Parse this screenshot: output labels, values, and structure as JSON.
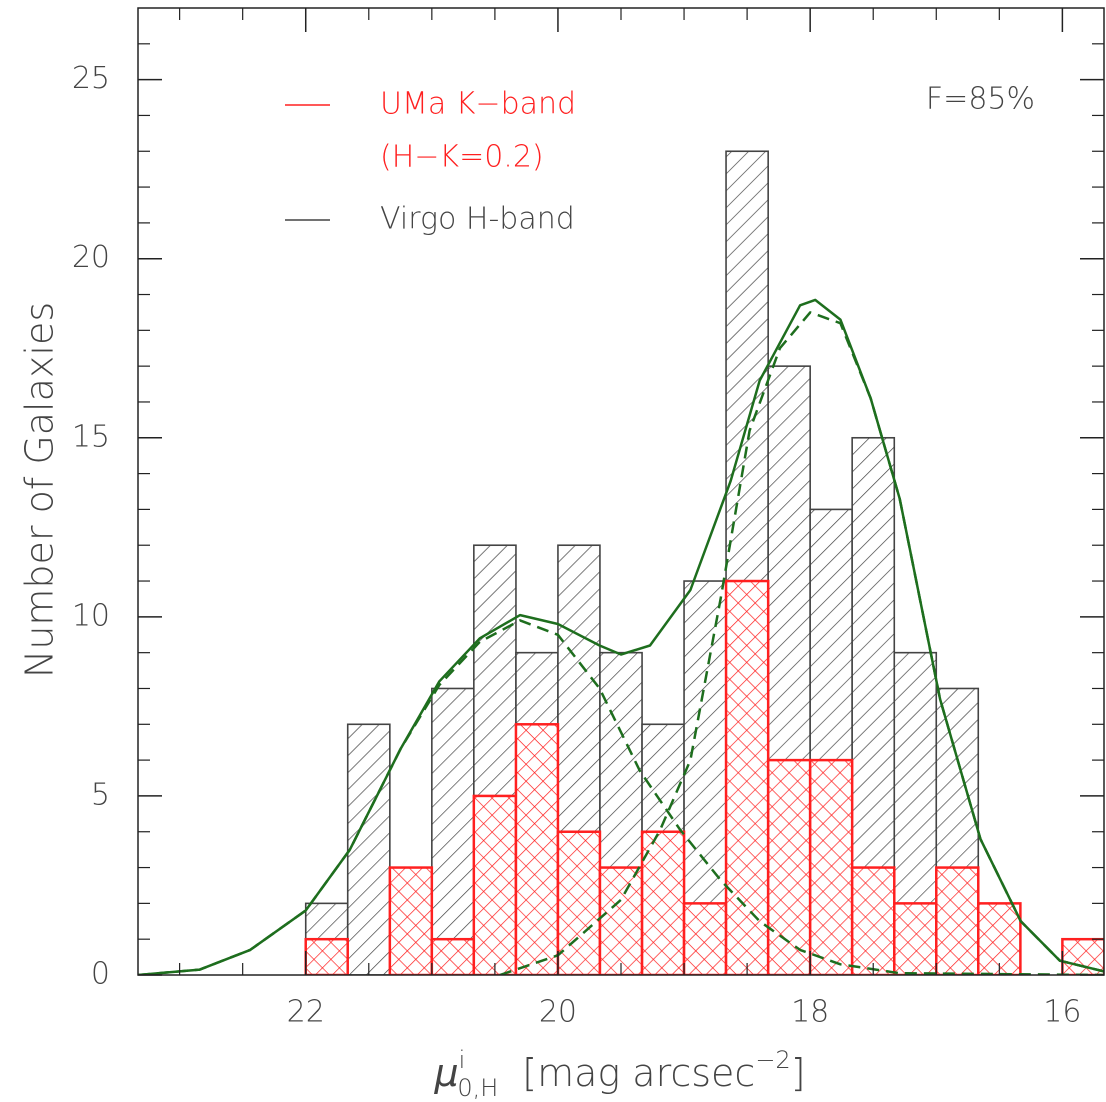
{
  "chart_data": {
    "type": "histogram",
    "annotation": "F=85%",
    "ylabel": "Number of Galaxies",
    "xlabel": {
      "symbol": "μ",
      "sup": "i",
      "sub": "0,H",
      "unit": "[mag arcsec",
      "exp": "−2",
      "close": "]"
    },
    "xlim": [
      23.33,
      15.67
    ],
    "ylim": [
      0,
      27
    ],
    "xticks": [
      22,
      20,
      18,
      16
    ],
    "xminorticks": [
      23,
      22.5,
      21.5,
      21,
      20.5,
      19.5,
      19,
      18.5,
      17.5,
      17,
      16.5
    ],
    "yticks": [
      0,
      5,
      10,
      15,
      20,
      25
    ],
    "yminorticks": [
      1,
      2,
      3,
      4,
      6,
      7,
      8,
      9,
      11,
      12,
      13,
      14,
      16,
      17,
      18,
      19,
      21,
      22,
      23,
      24,
      26
    ],
    "bins": [
      22,
      21.667,
      21.333,
      21,
      20.667,
      20.333,
      20,
      19.667,
      19.333,
      19,
      18.667,
      18.333,
      18,
      17.667,
      17.333,
      17,
      16.667,
      16.333,
      16,
      15.667
    ],
    "series": [
      {
        "name": "Virgo H-band",
        "color": "#444444",
        "hatch": "single",
        "values": [
          2,
          7,
          3,
          8,
          12,
          9,
          12,
          9,
          7,
          11,
          23,
          17,
          13,
          15,
          9,
          8,
          0,
          0,
          0
        ]
      },
      {
        "name": "UMa K−band",
        "subname": "(H−K=0.2)",
        "color": "#ff2020",
        "hatch": "cross",
        "values": [
          1,
          0,
          3,
          1,
          5,
          7,
          4,
          3,
          4,
          2,
          11,
          6,
          6,
          3,
          2,
          3,
          2,
          0,
          1
        ]
      }
    ],
    "curves": [
      {
        "color": "#1e6e1e",
        "dash": false,
        "x": [
          23.33,
          22.84,
          22.44,
          22,
          21.65,
          21.25,
          20.94,
          20.62,
          20.3,
          20,
          19.67,
          19.5,
          19.27,
          18.95,
          18.63,
          18.4,
          18.08,
          17.96,
          17.76,
          17.52,
          17.29,
          16.97,
          16.65,
          16.33,
          16.02,
          15.67
        ],
        "values": [
          0,
          0.15,
          0.7,
          1.8,
          3.5,
          6.3,
          8.2,
          9.4,
          10.05,
          9.8,
          9.2,
          8.95,
          9.2,
          10.75,
          13.8,
          16.6,
          18.7,
          18.85,
          18.3,
          16.1,
          13.3,
          7.7,
          3.8,
          1.5,
          0.4,
          0.1
        ]
      },
      {
        "color": "#1e6e1e",
        "dash": true,
        "x": [
          23.33,
          22.84,
          22.44,
          22,
          21.65,
          21.25,
          20.94,
          20.62,
          20.3,
          20,
          19.67,
          19.35,
          19.03,
          18.71,
          18.4,
          18.08,
          17.76,
          17.29,
          15.67
        ],
        "values": [
          0,
          0.15,
          0.7,
          1.8,
          3.5,
          6.3,
          8.1,
          9.3,
          9.9,
          9.5,
          8.0,
          5.7,
          4.05,
          2.65,
          1.5,
          0.7,
          0.3,
          0.05,
          0
        ]
      },
      {
        "color": "#1e6e1e",
        "dash": true,
        "x": [
          20.46,
          20,
          19.5,
          19.19,
          18.95,
          18.71,
          18.48,
          18.24,
          18,
          17.76,
          17.52,
          17.29,
          16.97,
          16.65,
          16.33,
          16.02,
          15.67
        ],
        "values": [
          0,
          0.55,
          2.1,
          4.05,
          6.0,
          10.5,
          15.2,
          17.5,
          18.5,
          18.2,
          16.1,
          13.3,
          7.7,
          3.8,
          1.5,
          0.4,
          0.1
        ]
      }
    ]
  }
}
